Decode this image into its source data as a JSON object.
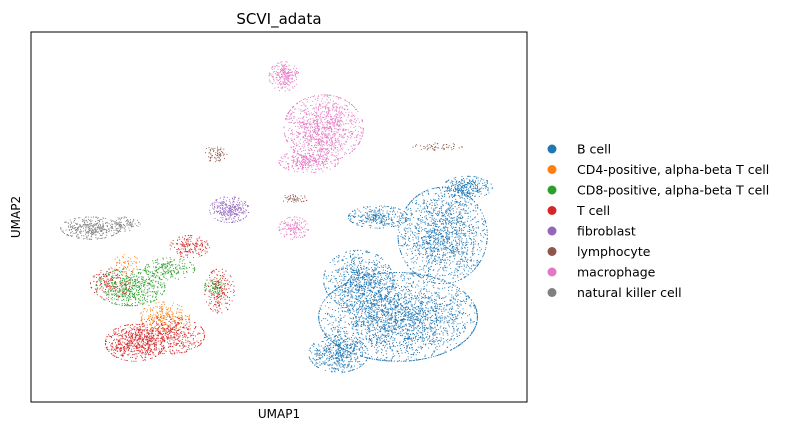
{
  "chart_data": {
    "type": "scatter",
    "title": "SCVI_adata",
    "xlabel": "UMAP1",
    "ylabel": "UMAP2",
    "xticks": false,
    "yticks": false,
    "grid": false,
    "legend_placement": "right",
    "xlim": [
      0,
      100
    ],
    "ylim": [
      0,
      100
    ],
    "series": [
      {
        "name": "B cell",
        "color": "#1f77b4",
        "clusters": [
          {
            "cx": 74,
            "cy": 23,
            "rx": 16,
            "ry": 12,
            "n": 2600
          },
          {
            "cx": 83,
            "cy": 45,
            "rx": 9,
            "ry": 13,
            "n": 1500
          },
          {
            "cx": 66,
            "cy": 33,
            "rx": 7,
            "ry": 8,
            "n": 700
          },
          {
            "cx": 62,
            "cy": 13,
            "rx": 6,
            "ry": 5,
            "n": 500
          },
          {
            "cx": 70,
            "cy": 50,
            "rx": 6,
            "ry": 3,
            "n": 300
          },
          {
            "cx": 88,
            "cy": 58,
            "rx": 5,
            "ry": 3,
            "n": 300
          }
        ]
      },
      {
        "name": "CD4-positive, alpha-beta T cell",
        "color": "#ff7f0e",
        "clusters": [
          {
            "cx": 27,
            "cy": 23,
            "rx": 5,
            "ry": 4,
            "n": 260
          },
          {
            "cx": 19,
            "cy": 37,
            "rx": 3,
            "ry": 3,
            "n": 60
          }
        ]
      },
      {
        "name": "CD8-positive, alpha-beta T cell",
        "color": "#2ca02c",
        "clusters": [
          {
            "cx": 20,
            "cy": 31,
            "rx": 7,
            "ry": 5,
            "n": 600
          },
          {
            "cx": 28,
            "cy": 36,
            "rx": 5,
            "ry": 3,
            "n": 200
          },
          {
            "cx": 37,
            "cy": 31,
            "rx": 2,
            "ry": 3,
            "n": 80
          }
        ]
      },
      {
        "name": "T cell",
        "color": "#d62728",
        "clusters": [
          {
            "cx": 21,
            "cy": 16,
            "rx": 6,
            "ry": 5,
            "n": 600
          },
          {
            "cx": 28,
            "cy": 18,
            "rx": 7,
            "ry": 5,
            "n": 450
          },
          {
            "cx": 38,
            "cy": 30,
            "rx": 3,
            "ry": 6,
            "n": 200
          },
          {
            "cx": 32,
            "cy": 42,
            "rx": 4,
            "ry": 3,
            "n": 180
          },
          {
            "cx": 16,
            "cy": 32,
            "rx": 4,
            "ry": 4,
            "n": 150
          }
        ]
      },
      {
        "name": "fibroblast",
        "color": "#9467bd",
        "clusters": [
          {
            "cx": 40,
            "cy": 52,
            "rx": 4,
            "ry": 3.5,
            "n": 300
          }
        ]
      },
      {
        "name": "lymphocyte",
        "color": "#8c564b",
        "clusters": [
          {
            "cx": 37,
            "cy": 67,
            "rx": 2.5,
            "ry": 2,
            "n": 70
          },
          {
            "cx": 82,
            "cy": 69,
            "rx": 5,
            "ry": 1,
            "n": 60
          },
          {
            "cx": 53,
            "cy": 55,
            "rx": 3,
            "ry": 1,
            "n": 50
          }
        ]
      },
      {
        "name": "macrophage",
        "color": "#e377c2",
        "clusters": [
          {
            "cx": 59,
            "cy": 74,
            "rx": 8,
            "ry": 9,
            "n": 1100
          },
          {
            "cx": 51,
            "cy": 88,
            "rx": 3,
            "ry": 4,
            "n": 250
          },
          {
            "cx": 56,
            "cy": 65,
            "rx": 6,
            "ry": 3,
            "n": 300
          },
          {
            "cx": 53,
            "cy": 47,
            "rx": 3,
            "ry": 3,
            "n": 150
          }
        ]
      },
      {
        "name": "natural killer cell",
        "color": "#7f7f7f",
        "clusters": [
          {
            "cx": 12,
            "cy": 47,
            "rx": 6,
            "ry": 3,
            "n": 380
          },
          {
            "cx": 19,
            "cy": 48,
            "rx": 3,
            "ry": 2,
            "n": 100
          }
        ]
      }
    ]
  }
}
